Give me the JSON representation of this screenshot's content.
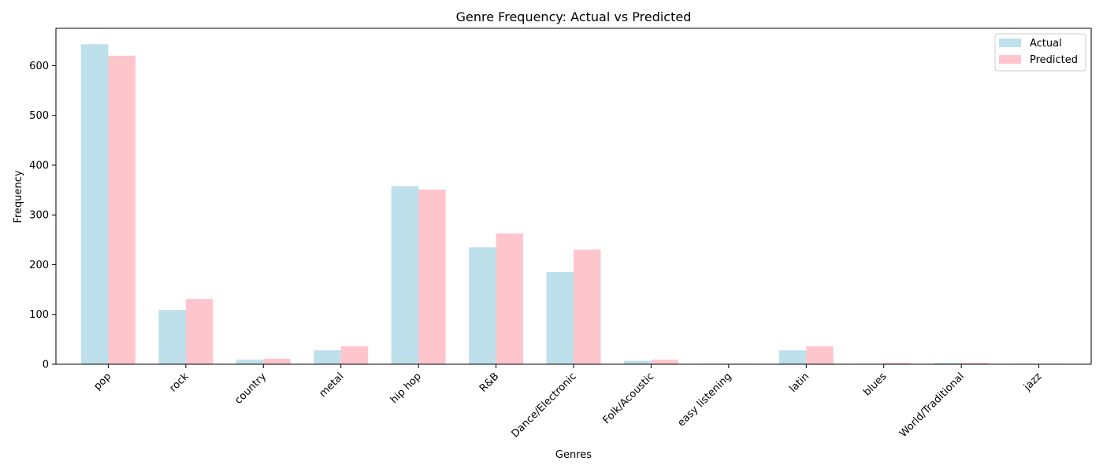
{
  "chart_data": {
    "type": "bar",
    "title": "Genre Frequency: Actual vs Predicted",
    "xlabel": "Genres",
    "ylabel": "Frequency",
    "categories": [
      "pop",
      "rock",
      "country",
      "metal",
      "hip hop",
      "R&B",
      "Dance/Electronic",
      "Folk/Acoustic",
      "easy listening",
      "latin",
      "blues",
      "World/Traditional",
      "jazz"
    ],
    "series": [
      {
        "name": "Actual",
        "color": "#add8e6",
        "values": [
          643,
          109,
          9,
          28,
          358,
          235,
          185,
          7,
          1,
          28,
          1,
          3,
          1
        ]
      },
      {
        "name": "Predicted",
        "color": "#ffb6c1",
        "values": [
          620,
          131,
          11,
          36,
          351,
          263,
          230,
          9,
          1,
          36,
          3,
          3,
          1
        ]
      }
    ],
    "ylim": [
      0,
      675
    ],
    "yticks": [
      0,
      100,
      200,
      300,
      400,
      500,
      600
    ],
    "grid": false,
    "legend": "top-right"
  }
}
